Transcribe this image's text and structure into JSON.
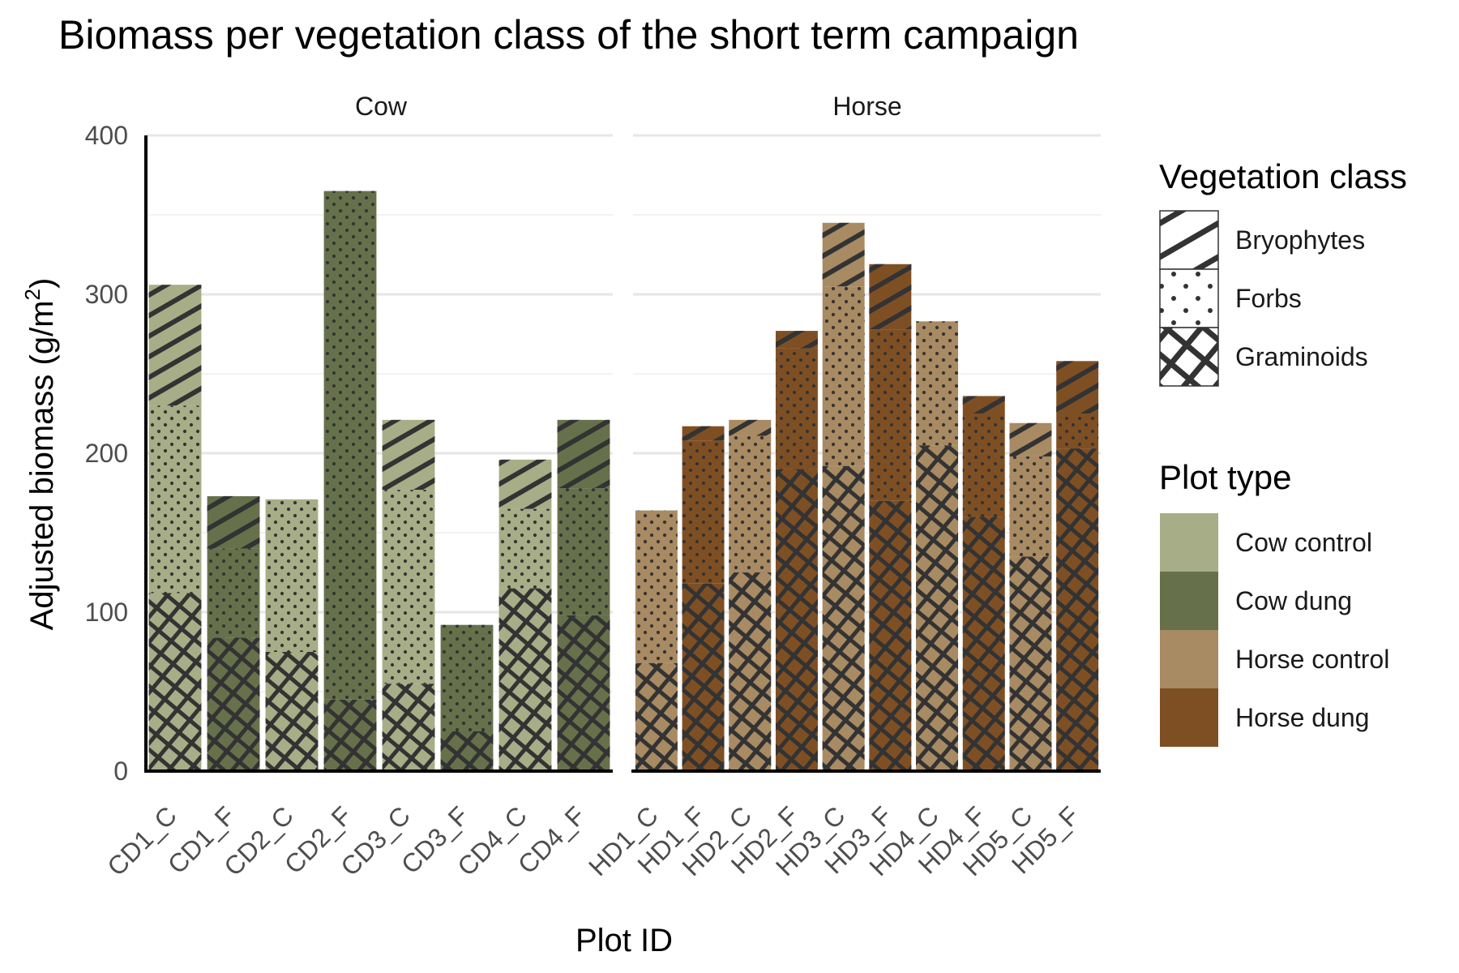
{
  "chart_data": {
    "type": "bar",
    "stacked": true,
    "title": "Biomass per vegetation class of the short term campaign",
    "xlabel": "Plot ID",
    "ylabel": "Adjusted biomass (g/m",
    "ylabel_superscript": "2",
    "ylabel_close": ")",
    "ylim": [
      0,
      400
    ],
    "yticks": [
      0,
      100,
      200,
      300,
      400
    ],
    "grid": true,
    "legend_position": "right",
    "panels": [
      {
        "label": "Cow",
        "categories": [
          "CD1_C",
          "CD1_F",
          "CD2_C",
          "CD2_F",
          "CD3_C",
          "CD3_F",
          "CD4_C",
          "CD4_F"
        ],
        "plot_types": [
          "Cow control",
          "Cow dung",
          "Cow control",
          "Cow dung",
          "Cow control",
          "Cow dung",
          "Cow control",
          "Cow dung"
        ],
        "series": [
          {
            "name": "Graminoids",
            "values": [
              112,
              84,
              75,
              45,
              55,
              25,
              115,
              98
            ]
          },
          {
            "name": "Forbs",
            "values": [
              118,
              56,
              96,
              320,
              122,
              67,
              50,
              80
            ]
          },
          {
            "name": "Bryophytes",
            "values": [
              76,
              33,
              0,
              0,
              44,
              0,
              31,
              43
            ]
          }
        ]
      },
      {
        "label": "Horse",
        "categories": [
          "HD1_C",
          "HD1_F",
          "HD2_C",
          "HD2_F",
          "HD3_C",
          "HD3_F",
          "HD4_C",
          "HD4_F",
          "HD5_C",
          "HD5_F"
        ],
        "plot_types": [
          "Horse control",
          "Horse dung",
          "Horse control",
          "Horse dung",
          "Horse control",
          "Horse dung",
          "Horse control",
          "Horse dung",
          "Horse control",
          "Horse dung"
        ],
        "series": [
          {
            "name": "Graminoids",
            "values": [
              68,
              118,
              125,
              190,
              192,
              170,
              205,
              160,
              135,
              203
            ]
          },
          {
            "name": "Forbs",
            "values": [
              96,
              90,
              86,
              76,
              113,
              108,
              78,
              65,
              63,
              22
            ]
          },
          {
            "name": "Bryophytes",
            "values": [
              0,
              9,
              10,
              11,
              40,
              41,
              0,
              11,
              21,
              33
            ]
          }
        ]
      }
    ],
    "legends": [
      {
        "title": "Vegetation class",
        "items": [
          {
            "label": "Bryophytes",
            "pattern": "stripe"
          },
          {
            "label": "Forbs",
            "pattern": "dots"
          },
          {
            "label": "Graminoids",
            "pattern": "crosshatch"
          }
        ]
      },
      {
        "title": "Plot type",
        "items": [
          {
            "label": "Cow control",
            "color": "#a7ad86"
          },
          {
            "label": "Cow dung",
            "color": "#66714b"
          },
          {
            "label": "Horse control",
            "color": "#a88a63"
          },
          {
            "label": "Horse dung",
            "color": "#7f4f24"
          }
        ]
      }
    ],
    "pattern_color": "#333333"
  }
}
